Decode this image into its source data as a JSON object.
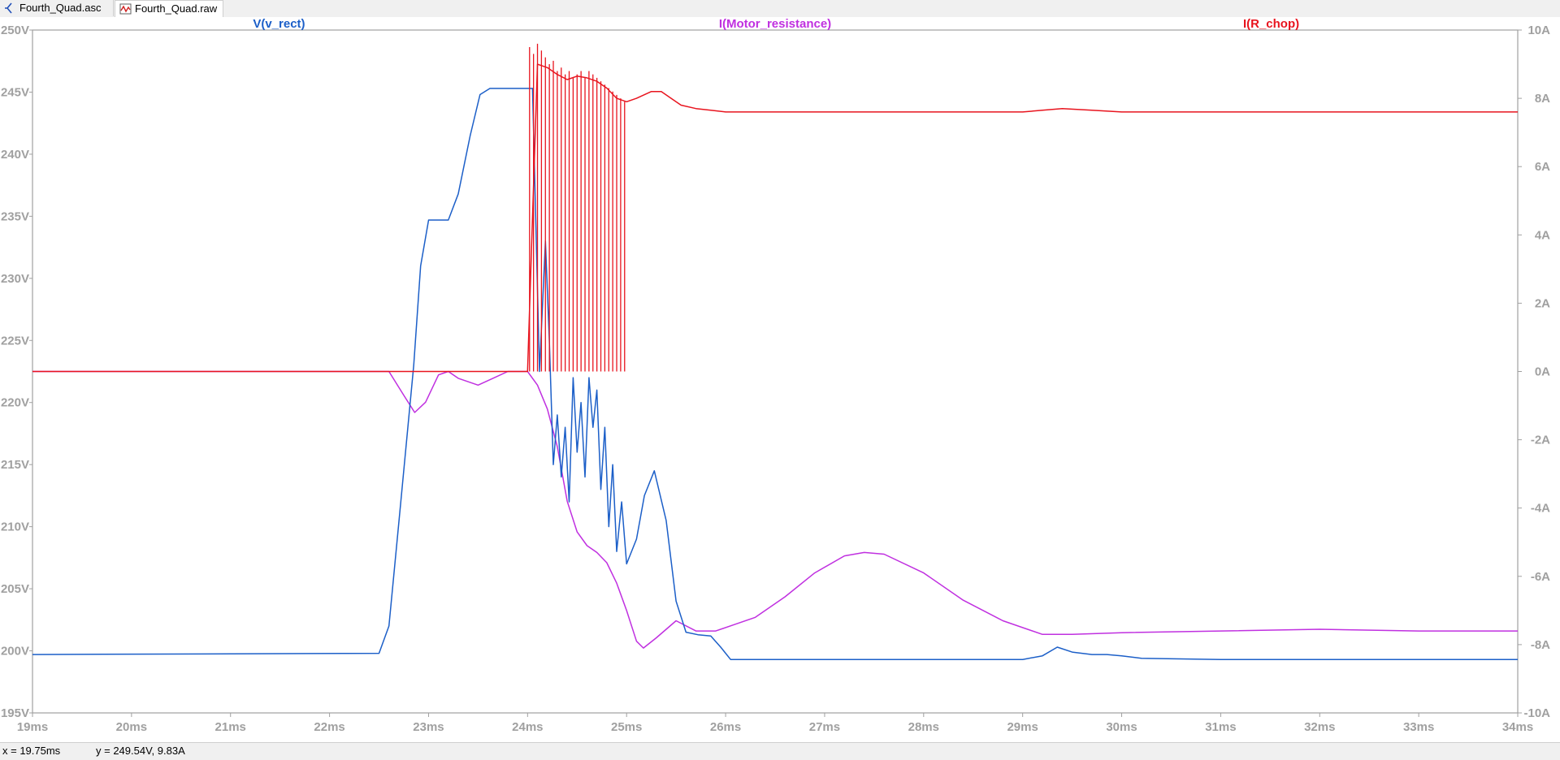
{
  "tabs": [
    {
      "label": "Fourth_Quad.asc",
      "icon": "schematic-icon",
      "active": false
    },
    {
      "label": "Fourth_Quad.raw",
      "icon": "waveform-icon",
      "active": true
    }
  ],
  "status": {
    "x_readout": "x = 19.75ms",
    "y_readout": "y = 249.54V, 9.83A"
  },
  "colors": {
    "grid": "#a0a0a0",
    "background": "#ffffff"
  },
  "chart_data": {
    "type": "line",
    "title": "",
    "xlabel": "",
    "x_unit": "ms",
    "xlim": [
      19,
      34
    ],
    "x_ticks": [
      "19ms",
      "20ms",
      "21ms",
      "22ms",
      "23ms",
      "24ms",
      "25ms",
      "26ms",
      "27ms",
      "28ms",
      "29ms",
      "30ms",
      "31ms",
      "32ms",
      "33ms",
      "34ms"
    ],
    "y_left": {
      "ylim": [
        195,
        250
      ],
      "ticks": [
        "195V",
        "200V",
        "205V",
        "210V",
        "215V",
        "220V",
        "225V",
        "230V",
        "235V",
        "240V",
        "245V",
        "250V"
      ]
    },
    "y_right": {
      "ylim": [
        -10,
        10
      ],
      "ticks": [
        "-10A",
        "-8A",
        "-6A",
        "-4A",
        "-2A",
        "0A",
        "2A",
        "4A",
        "6A",
        "8A",
        "10A"
      ]
    },
    "grid": false,
    "series": [
      {
        "name": "V(v_rect)",
        "axis": "left",
        "color": "#1c5fc8",
        "x": [
          19.0,
          22.5,
          22.6,
          22.72,
          22.85,
          22.92,
          23.0,
          23.2,
          23.3,
          23.42,
          23.52,
          23.62,
          23.72,
          24.05,
          24.12,
          24.18,
          24.22,
          24.26,
          24.3,
          24.34,
          24.38,
          24.42,
          24.46,
          24.5,
          24.54,
          24.58,
          24.62,
          24.66,
          24.7,
          24.74,
          24.78,
          24.82,
          24.86,
          24.9,
          24.95,
          25.0,
          25.1,
          25.18,
          25.28,
          25.4,
          25.5,
          25.6,
          25.72,
          25.85,
          25.95,
          26.05,
          29.0,
          29.2,
          29.35,
          29.5,
          29.7,
          29.85,
          30.0,
          30.2,
          31.0,
          34.0
        ],
        "y": [
          199.7,
          199.8,
          202.0,
          212.0,
          223.0,
          231.0,
          234.7,
          234.7,
          236.8,
          241.5,
          244.8,
          245.3,
          245.3,
          245.3,
          222.5,
          233.0,
          225.0,
          215.0,
          219.0,
          214.0,
          218.0,
          212.0,
          222.0,
          216.0,
          220.0,
          214.0,
          222.0,
          218.0,
          221.0,
          213.0,
          218.0,
          210.0,
          215.0,
          208.0,
          212.0,
          207.0,
          209.0,
          212.5,
          214.5,
          210.5,
          204.0,
          201.5,
          201.3,
          201.2,
          200.3,
          199.3,
          199.3,
          199.6,
          200.3,
          199.9,
          199.7,
          199.7,
          199.6,
          199.4,
          199.3,
          199.3
        ]
      },
      {
        "name": "I(Motor_resistance)",
        "axis": "right",
        "color": "#c030e0",
        "x": [
          19.0,
          22.6,
          22.75,
          22.86,
          22.97,
          23.1,
          23.2,
          23.3,
          23.5,
          23.65,
          23.8,
          24.0,
          24.1,
          24.2,
          24.3,
          24.4,
          24.5,
          24.6,
          24.7,
          24.8,
          24.9,
          25.0,
          25.1,
          25.17,
          25.3,
          25.5,
          25.7,
          25.9,
          26.1,
          26.3,
          26.6,
          26.9,
          27.2,
          27.4,
          27.6,
          28.0,
          28.4,
          28.8,
          29.2,
          29.5,
          30.0,
          31.0,
          32.0,
          33.0,
          34.0
        ],
        "y": [
          0.0,
          0.0,
          -0.7,
          -1.2,
          -0.9,
          -0.1,
          0.0,
          -0.2,
          -0.4,
          -0.2,
          0.0,
          0.0,
          -0.4,
          -1.1,
          -2.2,
          -3.8,
          -4.7,
          -5.1,
          -5.3,
          -5.6,
          -6.2,
          -7.0,
          -7.9,
          -8.1,
          -7.8,
          -7.3,
          -7.6,
          -7.6,
          -7.4,
          -7.2,
          -6.6,
          -5.9,
          -5.4,
          -5.3,
          -5.35,
          -5.9,
          -6.7,
          -7.3,
          -7.7,
          -7.7,
          -7.65,
          -7.6,
          -7.55,
          -7.6,
          -7.6
        ]
      },
      {
        "name": "I(R_chop)",
        "axis": "right",
        "color": "#e8141e",
        "x": [
          19.0,
          24.0,
          24.1,
          24.2,
          24.3,
          24.4,
          24.5,
          24.6,
          24.7,
          24.8,
          24.9,
          25.0,
          25.1,
          25.25,
          25.35,
          25.45,
          25.55,
          25.7,
          25.85,
          26.0,
          26.5,
          28.0,
          29.0,
          29.2,
          29.4,
          29.7,
          30.0,
          31.0,
          32.0,
          33.0,
          34.0
        ],
        "y": [
          0.0,
          0.0,
          9.0,
          8.9,
          8.7,
          8.55,
          8.65,
          8.6,
          8.5,
          8.3,
          8.0,
          7.9,
          8.0,
          8.2,
          8.2,
          8.0,
          7.8,
          7.7,
          7.65,
          7.6,
          7.6,
          7.6,
          7.6,
          7.65,
          7.7,
          7.65,
          7.6,
          7.6,
          7.6,
          7.6,
          7.6
        ]
      }
    ],
    "chop_pulses": {
      "series": "I(R_chop)",
      "low": 0.0,
      "times": [
        24.02,
        24.06,
        24.1,
        24.14,
        24.18,
        24.22,
        24.26,
        24.3,
        24.34,
        24.38,
        24.42,
        24.46,
        24.5,
        24.54,
        24.58,
        24.62,
        24.66,
        24.7,
        24.74,
        24.78,
        24.82,
        24.86,
        24.9,
        24.94,
        24.98
      ],
      "peaks": [
        9.5,
        9.3,
        9.6,
        9.4,
        9.2,
        9.0,
        9.1,
        8.8,
        8.9,
        8.7,
        8.8,
        8.6,
        8.7,
        8.8,
        8.6,
        8.8,
        8.7,
        8.6,
        8.5,
        8.4,
        8.3,
        8.2,
        8.1,
        8.0,
        7.9
      ]
    }
  }
}
